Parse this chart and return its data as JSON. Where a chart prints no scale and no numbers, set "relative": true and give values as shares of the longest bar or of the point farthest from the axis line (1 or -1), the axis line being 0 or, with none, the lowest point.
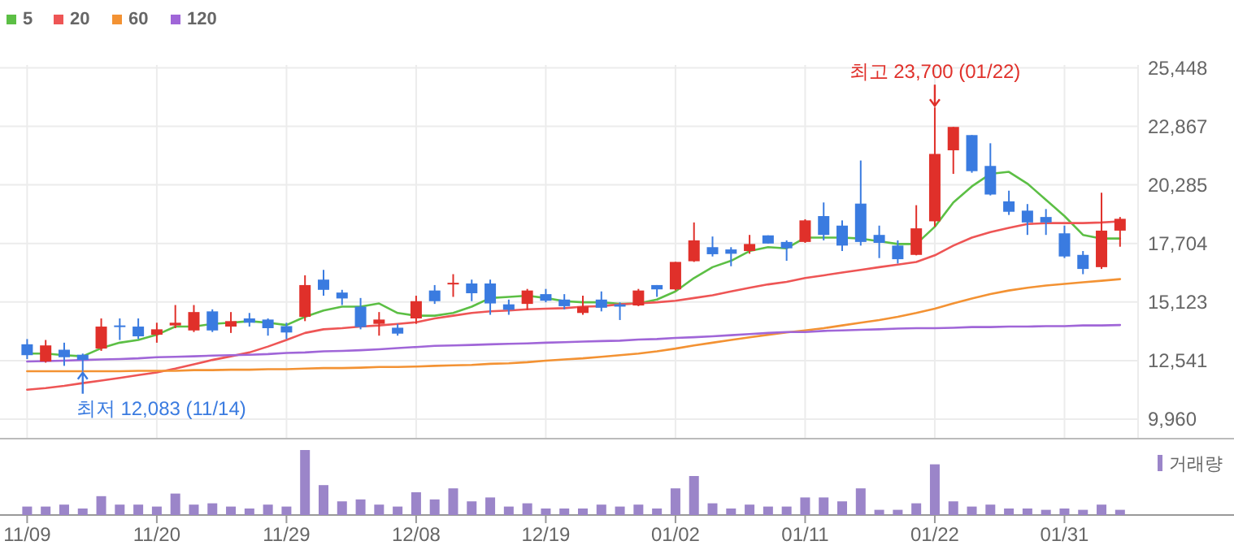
{
  "chart_data": [
    {
      "type": "candlestick",
      "categories": [
        "11/09",
        null,
        null,
        null,
        null,
        null,
        null,
        "11/20",
        null,
        null,
        null,
        null,
        null,
        null,
        "11/29",
        null,
        null,
        null,
        null,
        null,
        null,
        "12/08",
        null,
        null,
        null,
        null,
        null,
        null,
        "12/19",
        null,
        null,
        null,
        null,
        null,
        null,
        "01/02",
        null,
        null,
        null,
        null,
        null,
        null,
        "01/11",
        null,
        null,
        null,
        null,
        null,
        null,
        "01/22",
        null,
        null,
        null,
        null,
        null,
        null,
        "01/31",
        null,
        null,
        null
      ],
      "ohlc": [
        [
          13260,
          13490,
          12610,
          12780
        ],
        [
          12500,
          13450,
          12450,
          13210
        ],
        [
          13020,
          13330,
          12310,
          12690
        ],
        [
          12800,
          12850,
          12083,
          12570
        ],
        [
          13070,
          14400,
          12970,
          14040
        ],
        [
          14090,
          14400,
          13450,
          14040
        ],
        [
          14040,
          14400,
          13490,
          13610
        ],
        [
          13680,
          14210,
          13330,
          13920
        ],
        [
          14090,
          14990,
          13970,
          14210
        ],
        [
          13870,
          14990,
          13800,
          14680
        ],
        [
          14710,
          14800,
          13800,
          13870
        ],
        [
          14040,
          14680,
          13760,
          14280
        ],
        [
          14400,
          14640,
          14040,
          14210
        ],
        [
          14350,
          14400,
          13640,
          13970
        ],
        [
          14060,
          14210,
          13490,
          13780
        ],
        [
          14470,
          16300,
          14280,
          15870
        ],
        [
          16110,
          16540,
          15400,
          15660
        ],
        [
          15540,
          15660,
          14990,
          15280
        ],
        [
          14920,
          15300,
          13920,
          14020
        ],
        [
          14160,
          14680,
          13640,
          14350
        ],
        [
          13990,
          14160,
          13640,
          13730
        ],
        [
          14400,
          15400,
          14160,
          15160
        ],
        [
          15630,
          15870,
          15040,
          15160
        ],
        [
          15900,
          16350,
          15350,
          15970
        ],
        [
          15940,
          16110,
          15160,
          15510
        ],
        [
          15940,
          16110,
          14560,
          15060
        ],
        [
          15020,
          15230,
          14560,
          14780
        ],
        [
          15040,
          15700,
          14780,
          15630
        ],
        [
          15470,
          15700,
          15110,
          15180
        ],
        [
          15230,
          15470,
          14800,
          14940
        ],
        [
          14640,
          15400,
          14560,
          14920
        ],
        [
          15230,
          15590,
          14710,
          14870
        ],
        [
          15020,
          15110,
          14330,
          14920
        ],
        [
          14970,
          15700,
          14940,
          15630
        ],
        [
          15870,
          15870,
          15350,
          15680
        ],
        [
          15680,
          16890,
          15630,
          16890
        ],
        [
          16920,
          18630,
          16890,
          17840
        ],
        [
          17540,
          18010,
          17130,
          17230
        ],
        [
          17440,
          17540,
          16700,
          17250
        ],
        [
          17370,
          18080,
          17250,
          17680
        ],
        [
          18060,
          18060,
          17700,
          17700
        ],
        [
          17770,
          17840,
          16940,
          17490
        ],
        [
          17770,
          18770,
          17730,
          18720
        ],
        [
          18910,
          19510,
          17840,
          18080
        ],
        [
          18490,
          18720,
          17370,
          17610
        ],
        [
          19460,
          21360,
          17610,
          17770
        ],
        [
          18080,
          18490,
          17060,
          17730
        ],
        [
          17610,
          17840,
          16820,
          17010
        ],
        [
          17200,
          19390,
          17180,
          18370
        ],
        [
          18680,
          23700,
          18440,
          21650
        ],
        [
          21810,
          22840,
          20770,
          22840
        ],
        [
          22480,
          22480,
          20820,
          20890
        ],
        [
          21120,
          22120,
          19820,
          19860
        ],
        [
          19560,
          20030,
          18960,
          19100
        ],
        [
          19150,
          19440,
          18080,
          18630
        ],
        [
          18870,
          19220,
          18080,
          18630
        ],
        [
          18150,
          18490,
          17060,
          17130
        ],
        [
          17200,
          17370,
          16350,
          16580
        ],
        [
          16660,
          19940,
          16580,
          18270
        ],
        [
          18270,
          18870,
          17560,
          18790
        ]
      ],
      "series": [
        {
          "name": "5",
          "type": "line",
          "color": "#5cbf45",
          "values": [
            12850,
            12850,
            12780,
            12730,
            13090,
            13330,
            13450,
            13680,
            14040,
            14040,
            14160,
            14210,
            14280,
            14210,
            14110,
            14470,
            14750,
            14920,
            14920,
            15060,
            14640,
            14520,
            14520,
            14640,
            14920,
            15300,
            15350,
            15400,
            15300,
            15160,
            15110,
            15110,
            15040,
            15060,
            15230,
            15590,
            16180,
            16660,
            16940,
            17370,
            17540,
            17490,
            17960,
            17960,
            17960,
            17920,
            17800,
            17680,
            17680,
            18440,
            19510,
            20220,
            20770,
            20860,
            20340,
            19630,
            18910,
            18080,
            17920,
            17920
          ]
        },
        {
          "name": "20",
          "type": "line",
          "color": "#ee5555",
          "values": [
            11260,
            11330,
            11430,
            11550,
            11660,
            11780,
            11900,
            12020,
            12190,
            12380,
            12570,
            12730,
            12900,
            13160,
            13450,
            13760,
            13920,
            13970,
            14040,
            14090,
            14160,
            14230,
            14400,
            14520,
            14640,
            14710,
            14750,
            14800,
            14830,
            14850,
            14920,
            14940,
            15020,
            15060,
            15110,
            15180,
            15300,
            15420,
            15590,
            15750,
            15900,
            16010,
            16180,
            16300,
            16420,
            16540,
            16660,
            16770,
            16890,
            17180,
            17610,
            17960,
            18200,
            18390,
            18560,
            18600,
            18600,
            18600,
            18630,
            18680
          ]
        },
        {
          "name": "60",
          "type": "line",
          "color": "#f39233",
          "values": [
            12070,
            12070,
            12070,
            12070,
            12070,
            12070,
            12090,
            12090,
            12090,
            12120,
            12120,
            12140,
            12140,
            12160,
            12160,
            12190,
            12210,
            12210,
            12230,
            12260,
            12260,
            12280,
            12310,
            12330,
            12350,
            12400,
            12420,
            12470,
            12540,
            12590,
            12640,
            12710,
            12780,
            12850,
            12950,
            13070,
            13210,
            13330,
            13450,
            13570,
            13680,
            13780,
            13870,
            13970,
            14090,
            14210,
            14330,
            14470,
            14640,
            14830,
            15060,
            15280,
            15470,
            15630,
            15750,
            15850,
            15920,
            15990,
            16060,
            16130
          ]
        },
        {
          "name": "120",
          "type": "line",
          "color": "#a066d8",
          "values": [
            12500,
            12520,
            12540,
            12570,
            12590,
            12610,
            12640,
            12690,
            12710,
            12730,
            12760,
            12780,
            12800,
            12830,
            12880,
            12900,
            12950,
            12970,
            13000,
            13040,
            13090,
            13140,
            13190,
            13210,
            13230,
            13260,
            13280,
            13300,
            13330,
            13350,
            13380,
            13400,
            13420,
            13470,
            13490,
            13540,
            13570,
            13610,
            13660,
            13710,
            13760,
            13800,
            13800,
            13850,
            13870,
            13900,
            13920,
            13950,
            13970,
            13970,
            13990,
            14020,
            14020,
            14040,
            14040,
            14060,
            14060,
            14090,
            14090,
            14110
          ]
        }
      ],
      "ylim": [
        9960,
        25448
      ],
      "yticks": [
        {
          "value": 9960,
          "label": "9,960"
        },
        {
          "value": 12541,
          "label": "12,541"
        },
        {
          "value": 15123,
          "label": "15,123"
        },
        {
          "value": 17704,
          "label": "17,704"
        },
        {
          "value": 20285,
          "label": "20,285"
        },
        {
          "value": 22867,
          "label": "22,867"
        },
        {
          "value": 25448,
          "label": "25,448"
        }
      ],
      "grid": true,
      "legend": "top left",
      "tick_labels": "y",
      "annotations": [
        {
          "text": "최고 23,700 (01/22)",
          "x": "01/22",
          "y": 23700
        },
        {
          "text": "최저 12,083 (11/14)",
          "y": 12083
        }
      ]
    },
    {
      "type": "bar",
      "relative": true,
      "categories": [
        "11/09",
        null,
        null,
        null,
        null,
        null,
        null,
        "11/20",
        null,
        null,
        null,
        null,
        null,
        null,
        "11/29",
        null,
        null,
        null,
        null,
        null,
        null,
        "12/08",
        null,
        null,
        null,
        null,
        null,
        null,
        "12/19",
        null,
        null,
        null,
        null,
        null,
        null,
        "01/02",
        null,
        null,
        null,
        null,
        null,
        null,
        "01/11",
        null,
        null,
        null,
        null,
        null,
        null,
        "01/22",
        null,
        null,
        null,
        null,
        null,
        null,
        "01/31",
        null,
        null,
        null
      ],
      "series": [
        {
          "name": "거래량",
          "color": "#9b85c9",
          "values": [
            0.13,
            0.13,
            0.16,
            0.1,
            0.29,
            0.16,
            0.16,
            0.13,
            0.33,
            0.16,
            0.18,
            0.13,
            0.1,
            0.16,
            0.13,
            1,
            0.46,
            0.21,
            0.24,
            0.16,
            0.13,
            0.35,
            0.24,
            0.41,
            0.21,
            0.27,
            0.13,
            0.18,
            0.1,
            0.1,
            0.1,
            0.16,
            0.13,
            0.16,
            0.1,
            0.41,
            0.6,
            0.18,
            0.1,
            0.16,
            0.13,
            0.13,
            0.27,
            0.27,
            0.21,
            0.41,
            0.08,
            0.08,
            0.18,
            0.78,
            0.21,
            0.13,
            0.16,
            0.1,
            0.1,
            0.08,
            0.1,
            0.08,
            0.16,
            0.08
          ]
        }
      ],
      "legend": "top right",
      "tick_labels": "x"
    }
  ]
}
